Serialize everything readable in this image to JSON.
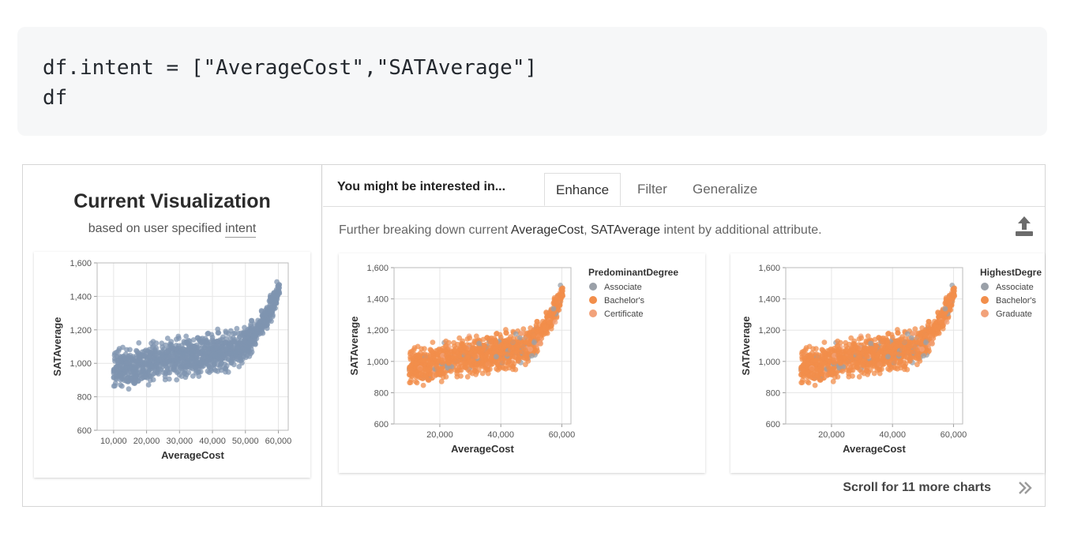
{
  "code": {
    "line1": "df.intent = [\"AverageCost\",\"SATAverage\"]",
    "line2": "df"
  },
  "current": {
    "title": "Current Visualization",
    "subtitle_prefix": "based on user specified ",
    "subtitle_link": "intent"
  },
  "recommend": {
    "heading": "You might be interested in...",
    "tabs": [
      {
        "label": "Enhance",
        "active": true
      },
      {
        "label": "Filter",
        "active": false
      },
      {
        "label": "Generalize",
        "active": false
      }
    ],
    "desc_prefix": "Further breaking down current ",
    "desc_attr1": "AverageCost",
    "desc_sep": ", ",
    "desc_attr2": "SATAverage",
    "desc_suffix": " intent by additional attribute.",
    "scroll_text": "Scroll for 11 more charts",
    "icons": {
      "export": "export-icon",
      "scroll": "chevron-double-right-icon"
    }
  },
  "colors": {
    "blue": "#7f94b0",
    "orange": "#f28e4b",
    "grey": "#9aa0a8",
    "peach": "#f2a27a"
  },
  "chart_data": [
    {
      "type": "scatter",
      "xlabel": "AverageCost",
      "ylabel": "SATAverage",
      "xticks": [
        "10,000",
        "20,000",
        "30,000",
        "40,000",
        "50,000",
        "60,000"
      ],
      "yticks": [
        "600",
        "800",
        "1,000",
        "1,200",
        "1,400",
        "1,600"
      ],
      "xlim": [
        5000,
        63000
      ],
      "ylim": [
        600,
        1600
      ],
      "series": [
        {
          "color": "#7f94b0"
        }
      ]
    },
    {
      "type": "scatter",
      "xlabel": "AverageCost",
      "ylabel": "SATAverage",
      "xticks": [
        "20,000",
        "40,000",
        "60,000"
      ],
      "yticks": [
        "600",
        "800",
        "1,000",
        "1,200",
        "1,400",
        "1,600"
      ],
      "xlim": [
        5000,
        63000
      ],
      "ylim": [
        600,
        1600
      ],
      "legend_title": "PredominantDegree",
      "legend": [
        "Associate",
        "Bachelor's",
        "Certificate"
      ],
      "series": [
        {
          "name": "Associate",
          "color": "#9aa0a8"
        },
        {
          "name": "Bachelor's",
          "color": "#f28e4b"
        },
        {
          "name": "Certificate",
          "color": "#f2a27a"
        }
      ]
    },
    {
      "type": "scatter",
      "xlabel": "AverageCost",
      "ylabel": "SATAverage",
      "xticks": [
        "20,000",
        "40,000",
        "60,000"
      ],
      "yticks": [
        "600",
        "800",
        "1,000",
        "1,200",
        "1,400",
        "1,600"
      ],
      "xlim": [
        5000,
        63000
      ],
      "ylim": [
        600,
        1600
      ],
      "legend_title": "HighestDegre",
      "legend": [
        "Associate",
        "Bachelor's",
        "Graduate"
      ],
      "series": [
        {
          "name": "Associate",
          "color": "#9aa0a8"
        },
        {
          "name": "Bachelor's",
          "color": "#f28e4b"
        },
        {
          "name": "Graduate",
          "color": "#f2a27a"
        }
      ]
    }
  ]
}
